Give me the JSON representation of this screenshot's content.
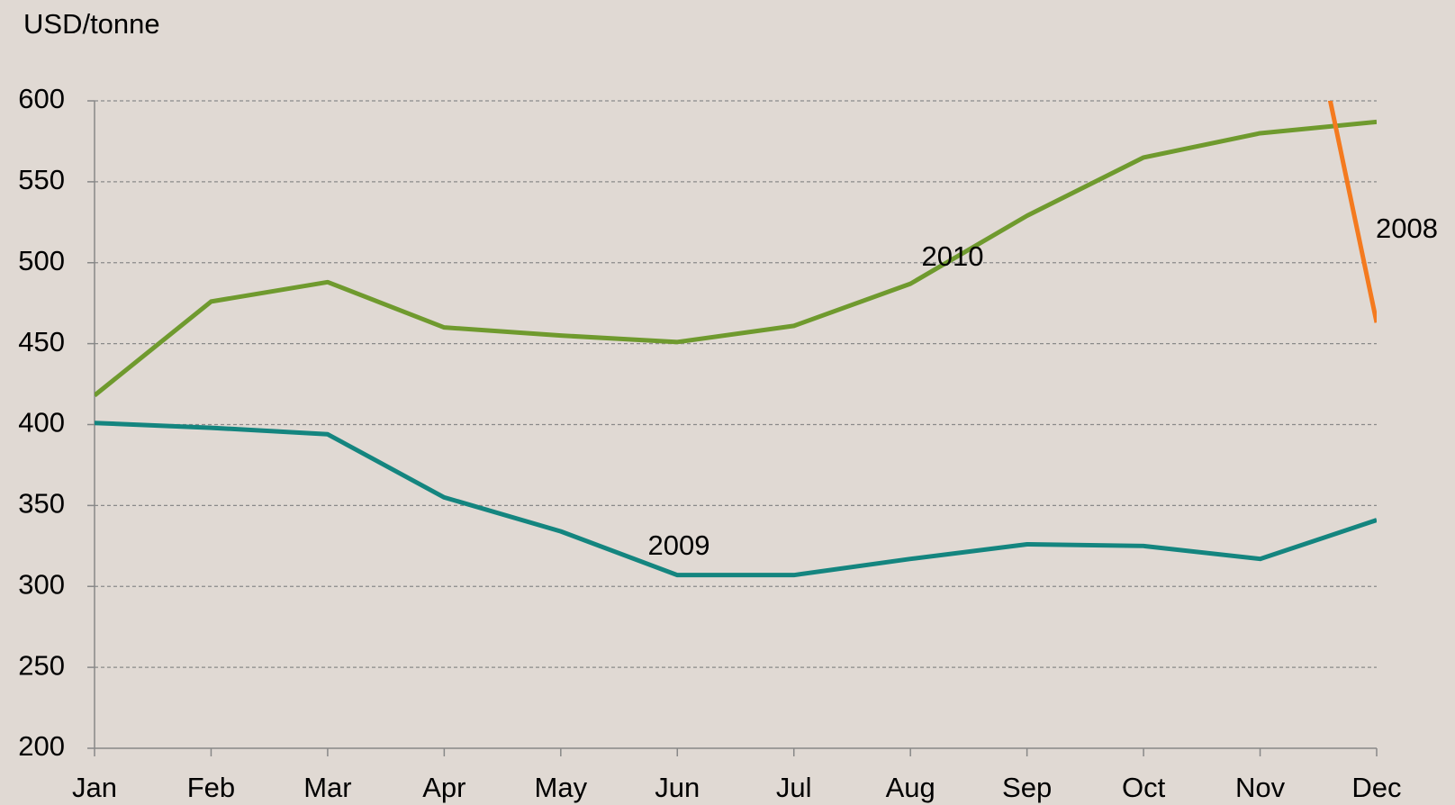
{
  "chart_data": {
    "type": "line",
    "y_label": "USD/tonne",
    "categories": [
      "Jan",
      "Feb",
      "Mar",
      "Apr",
      "May",
      "Jun",
      "Jul",
      "Aug",
      "Sep",
      "Oct",
      "Nov",
      "Dec"
    ],
    "series": [
      {
        "name": "2010",
        "color": "#6f9a2e",
        "values": [
          418,
          476,
          488,
          460,
          455,
          451,
          461,
          487,
          529,
          565,
          580,
          587
        ]
      },
      {
        "name": "2009",
        "color": "#14857f",
        "values": [
          401,
          398,
          394,
          355,
          334,
          307,
          307,
          317,
          326,
          325,
          317,
          341
        ]
      },
      {
        "name": "2008",
        "color": "#f47a1f",
        "values": [
          null,
          null,
          null,
          null,
          null,
          null,
          null,
          null,
          null,
          null,
          807,
          463
        ]
      }
    ],
    "ylim": [
      200,
      600
    ],
    "yticks": [
      200,
      250,
      300,
      350,
      400,
      450,
      500,
      550,
      600
    ],
    "grid": true
  }
}
